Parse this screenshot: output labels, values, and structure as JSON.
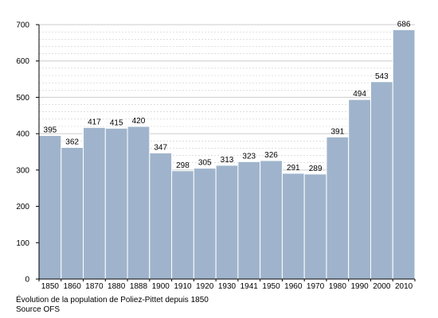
{
  "caption": {
    "line1": "Évolution de la population de Poliez-Pittet depuis 1850",
    "line2": "Source OFS"
  },
  "colors": {
    "bar": "#9fb4cc",
    "bar_edge": "#ffffff",
    "grid": "#cccccc",
    "axis": "#000000"
  },
  "chart_data": {
    "type": "bar",
    "title": "",
    "xlabel": "",
    "ylabel": "",
    "categories": [
      "1850",
      "1860",
      "1870",
      "1880",
      "1888",
      "1900",
      "1910",
      "1920",
      "1930",
      "1941",
      "1950",
      "1960",
      "1970",
      "1980",
      "1990",
      "2000",
      "2010"
    ],
    "values": [
      395,
      362,
      417,
      415,
      420,
      347,
      298,
      305,
      313,
      323,
      326,
      291,
      289,
      391,
      494,
      543,
      686
    ],
    "ylim": [
      0,
      700
    ],
    "yticks": [
      0,
      100,
      200,
      300,
      400,
      500,
      600,
      700
    ],
    "grid": true,
    "data_labels": true
  }
}
